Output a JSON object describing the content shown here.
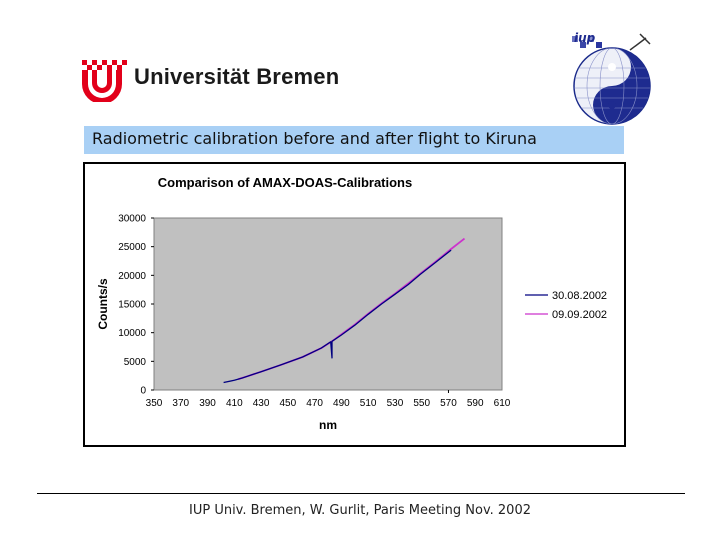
{
  "header": {
    "university_name": "Universität Bremen",
    "iup_logo_text": "iup"
  },
  "slide": {
    "title": "Radiometric calibration before and after flight to Kiruna"
  },
  "footer": {
    "text": "IUP Univ. Bremen, W. Gurlit, Paris Meeting Nov. 2002"
  },
  "colors": {
    "title_bar": "#a9d0f5",
    "plot_bg": "#c0c0c0",
    "series_1": "#000080",
    "series_2": "#cc33cc",
    "logo_red": "#e2001a"
  },
  "chart_data": {
    "type": "line",
    "title": "Comparison of AMAX-DOAS-Calibrations",
    "xlabel": "nm",
    "ylabel": "Counts/s",
    "xlim": [
      350,
      610
    ],
    "ylim": [
      0,
      30000
    ],
    "x_ticks": [
      "350",
      "370",
      "390",
      "410",
      "430",
      "450",
      "470",
      "490",
      "510",
      "530",
      "550",
      "570",
      "590",
      "610"
    ],
    "y_ticks": [
      "0",
      "5000",
      "10000",
      "15000",
      "20000",
      "25000",
      "30000"
    ],
    "grid": false,
    "legend_position": "right",
    "series": [
      {
        "name": "30.08.2002",
        "color": "#000080",
        "x": [
          402,
          410,
          416,
          430,
          445,
          461,
          475,
          482,
          483,
          483,
          490,
          500,
          510,
          520,
          530,
          540,
          549,
          560,
          572
        ],
        "y": [
          1300,
          1700,
          2100,
          3200,
          4400,
          5750,
          7300,
          8400,
          5600,
          8500,
          9600,
          11300,
          13200,
          15000,
          16700,
          18400,
          20200,
          22200,
          24400
        ]
      },
      {
        "name": "09.09.2002",
        "color": "#cc33cc",
        "x": [
          413,
          420,
          430,
          445,
          461,
          475,
          483,
          490,
          500,
          510,
          520,
          530,
          540,
          549,
          560,
          572,
          582
        ],
        "y": [
          1900,
          2400,
          3200,
          4400,
          5750,
          7300,
          8500,
          9700,
          11400,
          13300,
          15100,
          16800,
          18600,
          20300,
          22300,
          24600,
          26400
        ]
      }
    ]
  }
}
